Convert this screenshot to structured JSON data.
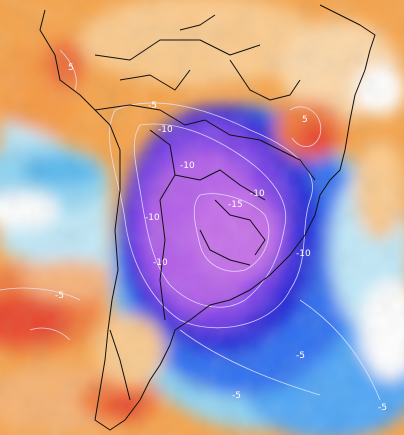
{
  "map": {
    "type": "temperature anomaly map (South America)",
    "colors": {
      "warm_orange": "#f5a34a",
      "warm_light": "#f9c98c",
      "hot_red": "#e8452a",
      "neutral_white": "#ffffff",
      "cool_light_blue": "#8fd3f0",
      "cool_blue": "#2f6ff0",
      "cold_deep_blue": "#2a2ad8",
      "cold_purple": "#7b3fe6",
      "coldest_violet": "#c46ee8",
      "borders": "#111111",
      "contours": "#e8e8ff"
    },
    "contour_labels": [
      {
        "text": "-5",
        "area": "northern Argentina / Bolivia edge"
      },
      {
        "text": "-10",
        "area": "Bolivia / Paraguay"
      },
      {
        "text": "-10",
        "area": "northern Chile edge"
      },
      {
        "text": "-15",
        "area": "Paraguay / Brazil"
      },
      {
        "text": "-10",
        "area": "southern Brazil"
      },
      {
        "text": "-10",
        "area": "northern Argentina west"
      },
      {
        "text": "-10",
        "area": "Uruguay east"
      },
      {
        "text": "-5",
        "area": "south-east Brazil"
      },
      {
        "text": "-5",
        "area": "Pacific west"
      },
      {
        "text": "-5",
        "area": "Patagonia coast"
      },
      {
        "text": "-5",
        "area": "South Atlantic"
      },
      {
        "text": "5",
        "area": "northern Peru"
      },
      {
        "text": "5",
        "area": "Minas Gerais"
      },
      {
        "text": "-10",
        "area": "Bolivia interior"
      }
    ]
  }
}
